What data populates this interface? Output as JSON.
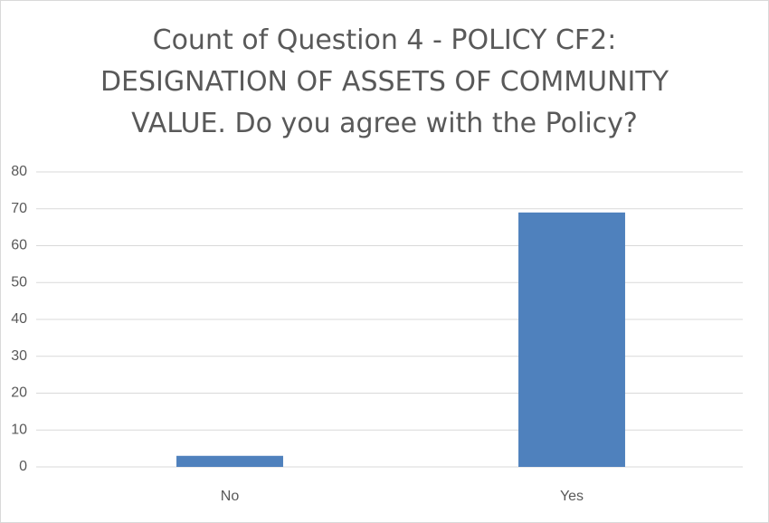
{
  "chart_data": {
    "type": "bar",
    "title": "Count of Question 4 - POLICY CF2: DESIGNATION OF ASSETS OF COMMUNITY VALUE. Do you agree with the Policy?",
    "categories": [
      "No",
      "Yes"
    ],
    "values": [
      3,
      69
    ],
    "color": "#4f81bd",
    "ylim": [
      0,
      80
    ],
    "yticks": [
      0,
      10,
      20,
      30,
      40,
      50,
      60,
      70,
      80
    ],
    "grid": true
  }
}
